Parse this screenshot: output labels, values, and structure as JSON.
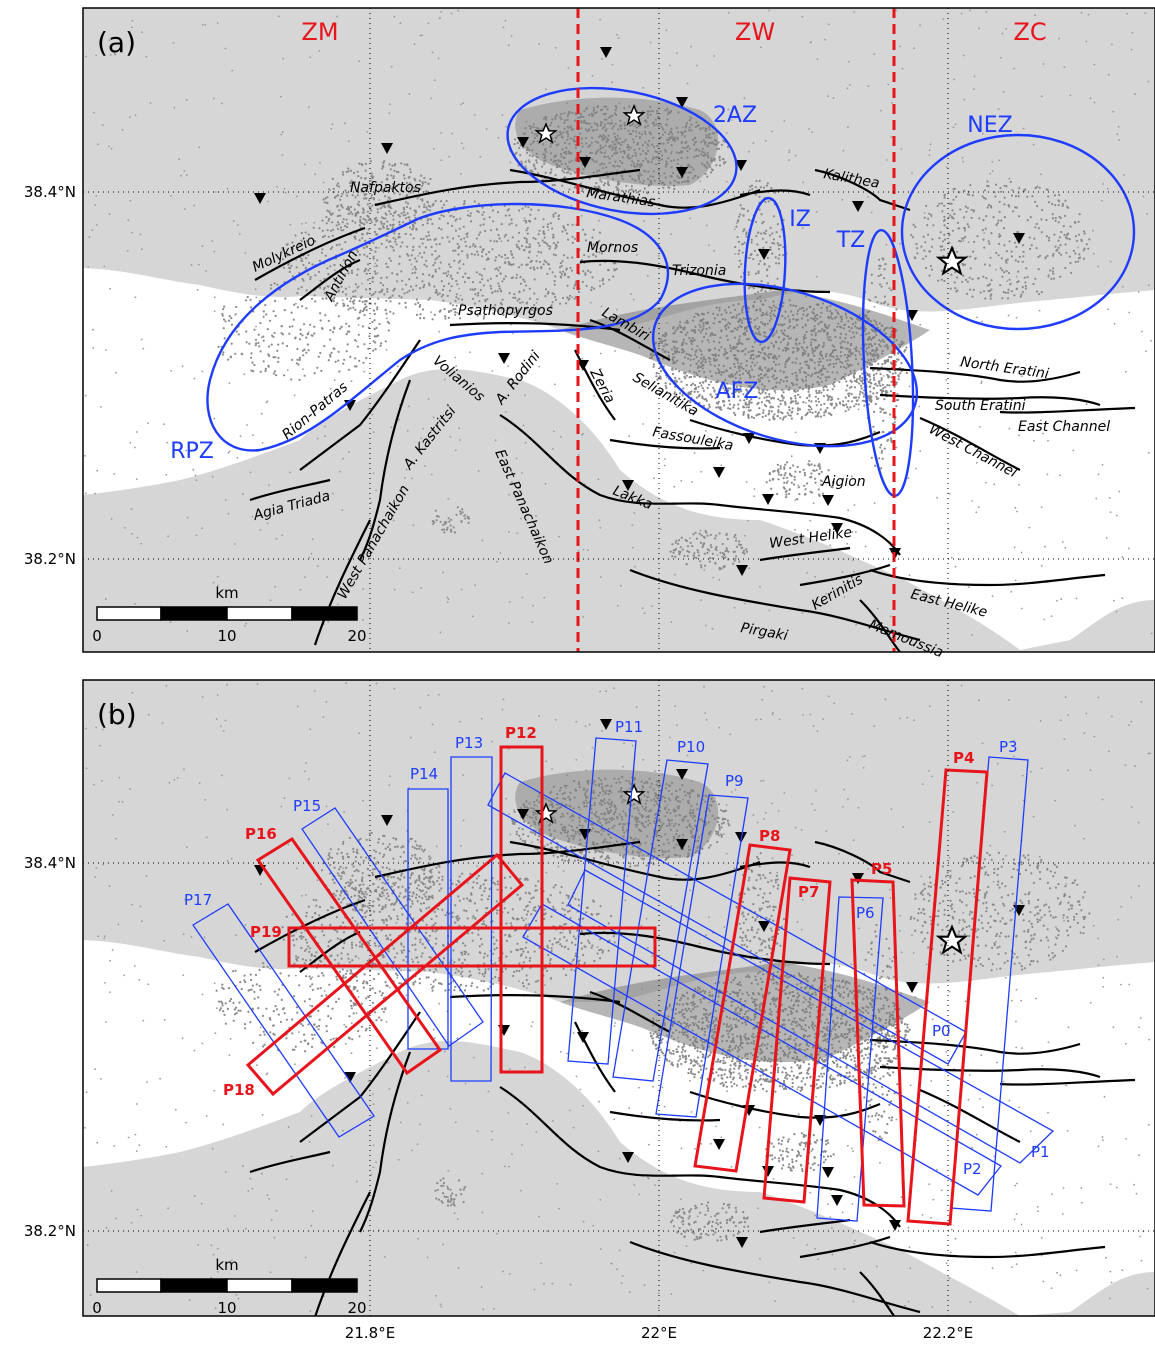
{
  "panel_a": {
    "label": "(a)",
    "lat_labels": [
      "38.4°N",
      "38.2°N"
    ],
    "zones": [
      {
        "label": "ZM",
        "color": "#e8141c"
      },
      {
        "label": "ZW",
        "color": "#e8141c"
      },
      {
        "label": "ZC",
        "color": "#e8141c"
      }
    ],
    "clusters": [
      "2AZ",
      "NEZ",
      "IZ",
      "TZ",
      "AFZ",
      "RPZ"
    ],
    "faults": [
      "Nafpaktos",
      "Marathias",
      "Kalithea",
      "Molykreio",
      "Antirion",
      "Mornos",
      "Trizonia",
      "Psathopyrgos",
      "Lambiri",
      "North Eratini",
      "South Eratini",
      "East Channel",
      "West Channel",
      "Volianios",
      "A. Rodini",
      "Zeria",
      "Selianitika",
      "Fassouleika",
      "Rion-Patras",
      "A. Kastritsi",
      "East Panachaikon",
      "Lakka",
      "Aigion",
      "Agia Triada",
      "West Panachaikon",
      "West Helike",
      "East Helike",
      "Kerinitis",
      "Mamoussia",
      "Pirgaki"
    ],
    "scalebar": {
      "unit": "km",
      "ticks": [
        "0",
        "10",
        "20"
      ]
    }
  },
  "panel_b": {
    "label": "(b)",
    "lat_labels": [
      "38.4°N",
      "38.2°N"
    ],
    "lon_labels": [
      "21.8°E",
      "22°E",
      "22.2°E"
    ],
    "profiles_blue": [
      "P0",
      "P1",
      "P2",
      "P3",
      "P6",
      "P9",
      "P10",
      "P11",
      "P13",
      "P14",
      "P15",
      "P17"
    ],
    "profiles_red": [
      "P4",
      "P5",
      "P7",
      "P8",
      "P12",
      "P16",
      "P18",
      "P19"
    ],
    "scalebar": {
      "unit": "km",
      "ticks": [
        "0",
        "10",
        "20"
      ]
    }
  },
  "colors": {
    "land": "#d6d6d6",
    "sea": "#ffffff",
    "zone_divider": "#e8141c",
    "cluster": "#1e3cff",
    "profile_blue": "#1e3cff",
    "profile_red": "#e8141c"
  }
}
